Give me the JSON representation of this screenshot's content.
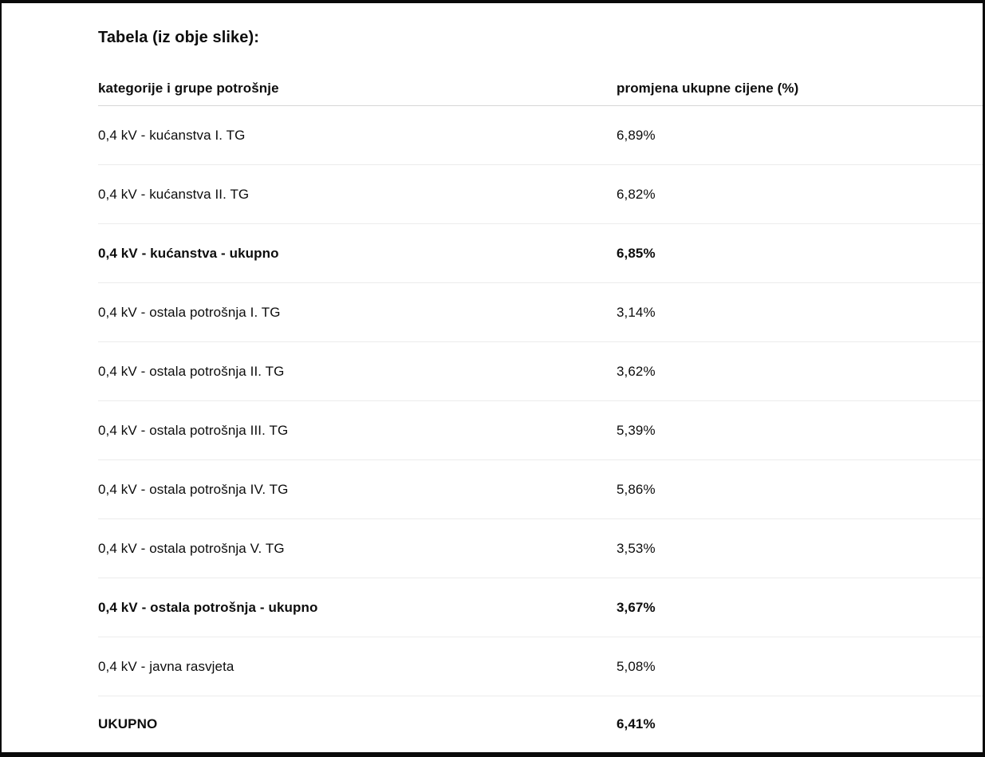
{
  "page": {
    "title": "Tabela (iz obje slike):"
  },
  "table": {
    "columns": {
      "category": "kategorije i grupe potrošnje",
      "value": "promjena ukupne cijene (%)"
    },
    "rows": [
      {
        "category": "0,4 kV - kućanstva I. TG",
        "value": "6,89%"
      },
      {
        "category": "0,4 kV - kućanstva II. TG",
        "value": "6,82%"
      },
      {
        "category": "0,4 kV - kućanstva - ukupno",
        "value": "6,85%"
      },
      {
        "category": "0,4 kV - ostala potrošnja I. TG",
        "value": "3,14%"
      },
      {
        "category": "0,4 kV - ostala potrošnja II. TG",
        "value": "3,62%"
      },
      {
        "category": "0,4 kV - ostala potrošnja III. TG",
        "value": "5,39%"
      },
      {
        "category": "0,4 kV - ostala potrošnja IV. TG",
        "value": "5,86%"
      },
      {
        "category": "0,4 kV - ostala potrošnja V. TG",
        "value": "3,53%"
      },
      {
        "category": "0,4 kV - ostala potrošnja - ukupno",
        "value": "3,67%"
      },
      {
        "category": "0,4 kV - javna rasvjeta",
        "value": "5,08%"
      },
      {
        "category": "UKUPNO",
        "value": "6,41%"
      }
    ],
    "colors": {
      "text": "#0d0d0d",
      "frame_border": "#0a0a0a",
      "header_divider": "#d6d6d6",
      "row_divider": "#ececec",
      "background": "#ffffff"
    }
  }
}
